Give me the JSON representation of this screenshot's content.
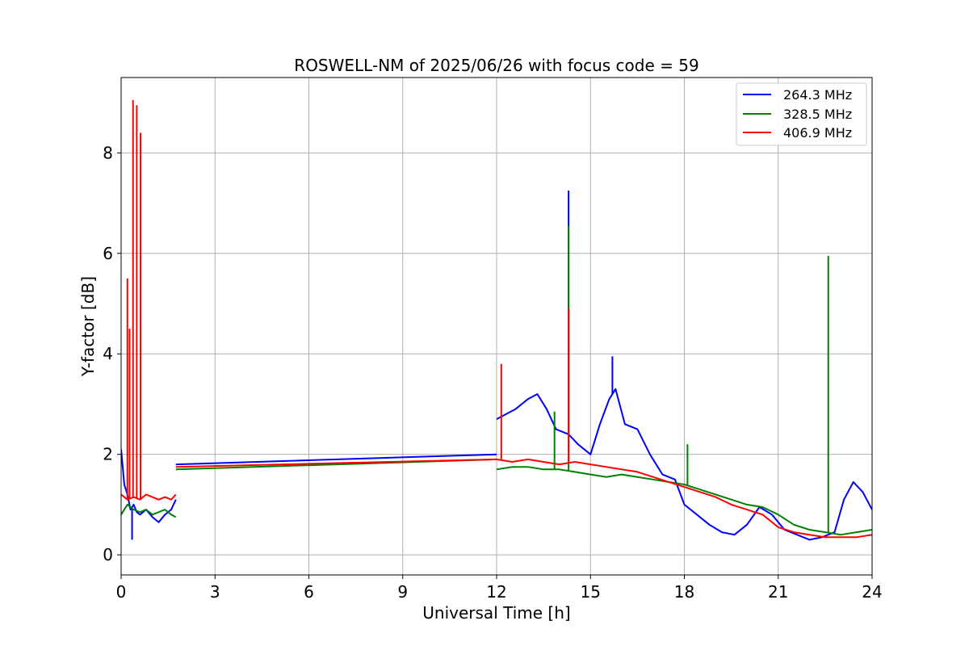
{
  "chart_data": {
    "type": "line",
    "title": "ROSWELL-NM of 2025/06/26 with focus code = 59",
    "xlabel": "Universal Time [h]",
    "ylabel": "Y-factor [dB]",
    "xlim": [
      0,
      24
    ],
    "ylim": [
      -0.4,
      9.5
    ],
    "xticks": [
      0,
      3,
      6,
      9,
      12,
      15,
      18,
      21,
      24
    ],
    "yticks": [
      0,
      2,
      4,
      6,
      8
    ],
    "grid": true,
    "legend_position": "top-right",
    "series": [
      {
        "name": "264.3 MHz",
        "color": "#0000ff",
        "segments": [
          {
            "x": [
              0.0,
              0.1,
              0.2,
              0.3,
              0.4,
              0.5,
              0.6,
              0.8,
              1.0,
              1.2,
              1.4,
              1.6,
              1.75
            ],
            "y": [
              2.1,
              1.4,
              1.2,
              0.9,
              1.0,
              0.85,
              0.8,
              0.9,
              0.75,
              0.65,
              0.8,
              0.9,
              1.1
            ]
          },
          {
            "x": [
              1.75,
              12.0
            ],
            "y": [
              1.8,
              2.0
            ]
          },
          {
            "x": [
              12.0,
              12.3,
              12.6,
              13.0,
              13.3,
              13.6,
              13.9,
              14.3,
              14.6,
              15.0,
              15.3,
              15.6,
              15.8,
              16.1,
              16.5,
              16.9,
              17.3,
              17.7,
              18.0,
              18.4,
              18.8,
              19.2,
              19.6,
              20.0,
              20.4,
              20.8,
              21.2,
              21.6,
              22.0,
              22.4,
              22.8,
              23.1,
              23.4,
              23.7,
              24.0
            ],
            "y": [
              2.7,
              2.8,
              2.9,
              3.1,
              3.2,
              2.9,
              2.5,
              2.4,
              2.2,
              2.0,
              2.6,
              3.1,
              3.3,
              2.6,
              2.5,
              2.0,
              1.6,
              1.5,
              1.0,
              0.8,
              0.6,
              0.45,
              0.4,
              0.6,
              0.95,
              0.8,
              0.5,
              0.4,
              0.3,
              0.35,
              0.45,
              1.1,
              1.45,
              1.25,
              0.9
            ]
          }
        ],
        "spikes": [
          {
            "x": 0.35,
            "y": 0.3
          },
          {
            "x": 14.3,
            "y": 7.25
          },
          {
            "x": 15.7,
            "y": 3.95
          }
        ]
      },
      {
        "name": "328.5 MHz",
        "color": "#008000",
        "segments": [
          {
            "x": [
              0.0,
              0.2,
              0.4,
              0.6,
              0.8,
              1.0,
              1.2,
              1.4,
              1.6,
              1.75
            ],
            "y": [
              0.8,
              1.0,
              0.9,
              0.85,
              0.9,
              0.8,
              0.85,
              0.9,
              0.8,
              0.75
            ]
          },
          {
            "x": [
              1.75,
              12.0
            ],
            "y": [
              1.7,
              1.9
            ]
          },
          {
            "x": [
              12.0,
              12.5,
              13.0,
              13.5,
              14.0,
              14.5,
              15.0,
              15.5,
              16.0,
              16.5,
              17.0,
              17.5,
              18.0,
              18.5,
              19.0,
              19.5,
              20.0,
              20.5,
              21.0,
              21.5,
              22.0,
              22.5,
              23.0,
              23.5,
              24.0
            ],
            "y": [
              1.7,
              1.75,
              1.75,
              1.7,
              1.7,
              1.65,
              1.6,
              1.55,
              1.6,
              1.55,
              1.5,
              1.45,
              1.4,
              1.3,
              1.2,
              1.1,
              1.0,
              0.95,
              0.8,
              0.6,
              0.5,
              0.45,
              0.4,
              0.45,
              0.5
            ]
          }
        ],
        "spikes": [
          {
            "x": 13.85,
            "y": 2.85
          },
          {
            "x": 14.3,
            "y": 6.55
          },
          {
            "x": 18.1,
            "y": 2.2
          },
          {
            "x": 22.6,
            "y": 5.95
          }
        ]
      },
      {
        "name": "406.9 MHz",
        "color": "#ff0000",
        "segments": [
          {
            "x": [
              0.0,
              0.2,
              0.4,
              0.6,
              0.8,
              1.0,
              1.2,
              1.4,
              1.6,
              1.75
            ],
            "y": [
              1.2,
              1.1,
              1.15,
              1.1,
              1.2,
              1.15,
              1.1,
              1.15,
              1.1,
              1.2
            ]
          },
          {
            "x": [
              1.75,
              12.0
            ],
            "y": [
              1.75,
              1.9
            ]
          },
          {
            "x": [
              12.0,
              12.5,
              13.0,
              13.5,
              14.0,
              14.5,
              15.0,
              15.5,
              16.0,
              16.5,
              17.0,
              17.5,
              18.0,
              18.5,
              19.0,
              19.5,
              20.0,
              20.5,
              21.0,
              21.5,
              22.0,
              22.5,
              23.0,
              23.5,
              24.0
            ],
            "y": [
              1.9,
              1.85,
              1.9,
              1.85,
              1.8,
              1.85,
              1.8,
              1.75,
              1.7,
              1.65,
              1.55,
              1.45,
              1.35,
              1.25,
              1.15,
              1.0,
              0.9,
              0.8,
              0.55,
              0.45,
              0.4,
              0.35,
              0.35,
              0.35,
              0.4
            ]
          }
        ],
        "spikes": [
          {
            "x": 0.2,
            "y": 5.5
          },
          {
            "x": 0.27,
            "y": 4.5
          },
          {
            "x": 0.38,
            "y": 9.05
          },
          {
            "x": 0.5,
            "y": 8.95
          },
          {
            "x": 0.62,
            "y": 8.4
          },
          {
            "x": 12.15,
            "y": 3.8
          },
          {
            "x": 14.3,
            "y": 4.9
          }
        ]
      }
    ]
  }
}
